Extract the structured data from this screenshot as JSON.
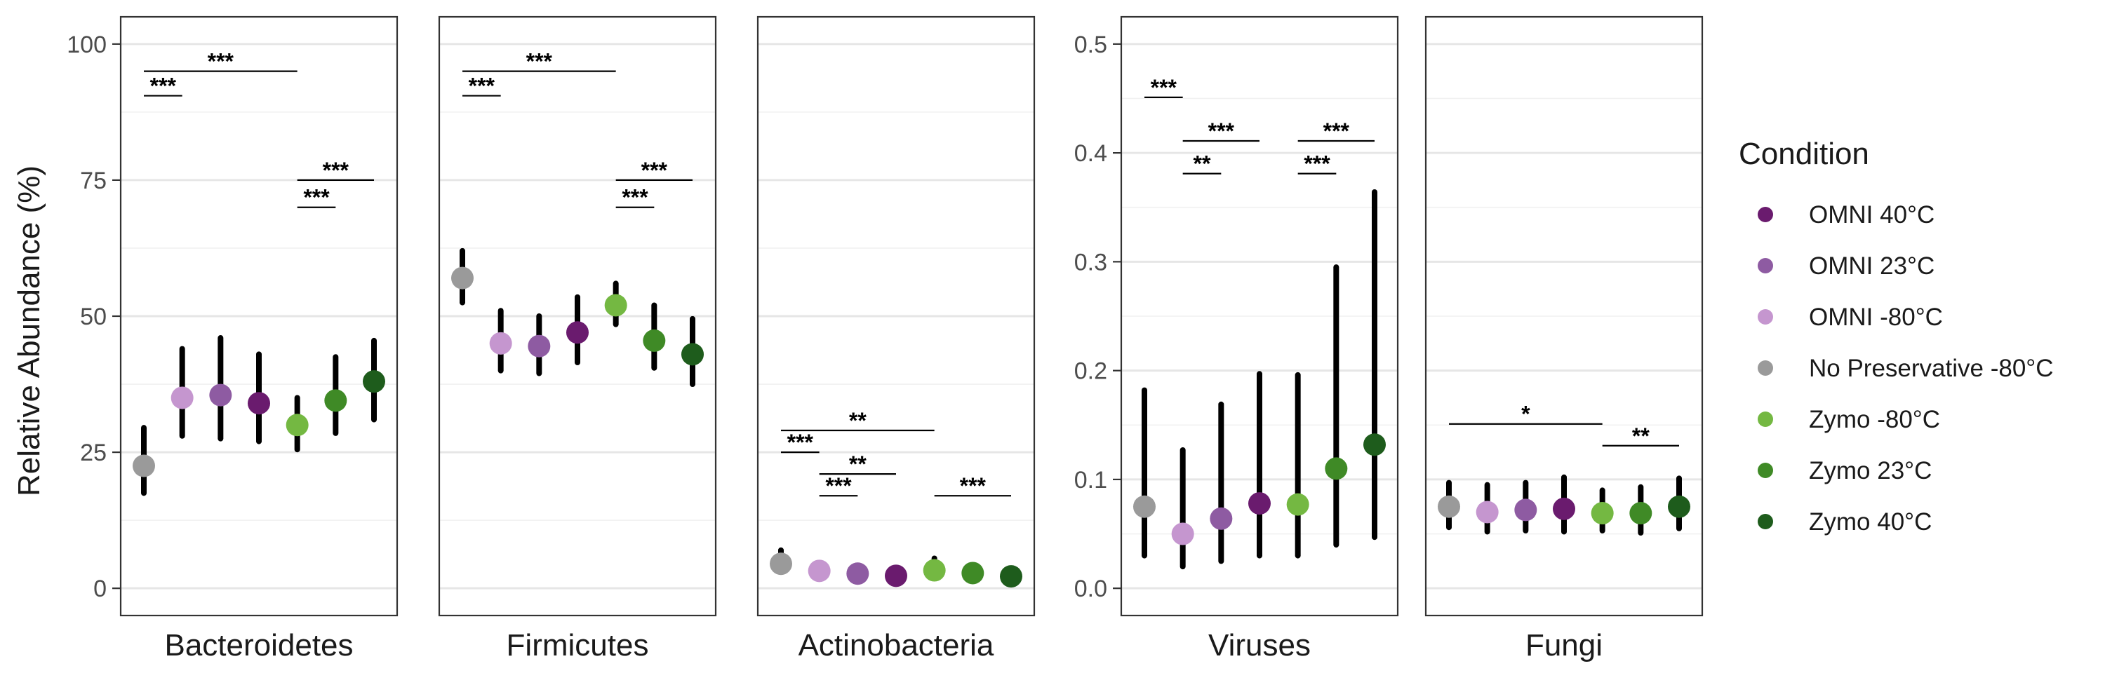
{
  "chart_data": {
    "type": "scatter",
    "ylabel": "Relative Abundance (%)",
    "legend": {
      "title": "Condition",
      "placement": "right",
      "entries": [
        {
          "name": "OMNI 40°C",
          "color": "#6a1b6e"
        },
        {
          "name": "OMNI 23°C",
          "color": "#8e5ba2"
        },
        {
          "name": "OMNI -80°C",
          "color": "#c596cf"
        },
        {
          "name": "No Preservative -80°C",
          "color": "#9a9a9a"
        },
        {
          "name": "Zymo -80°C",
          "color": "#74b842"
        },
        {
          "name": "Zymo 23°C",
          "color": "#3f8a26"
        },
        {
          "name": "Zymo 40°C",
          "color": "#1e5c1c"
        }
      ]
    },
    "x_order": [
      "No Preservative -80°C",
      "OMNI -80°C",
      "OMNI 23°C",
      "OMNI 40°C",
      "Zymo -80°C",
      "Zymo 23°C",
      "Zymo 40°C"
    ],
    "grid": true,
    "panels": [
      {
        "title": "Bacteroidetes",
        "ylim": [
          -5,
          105
        ],
        "yticks": [
          0,
          25,
          50,
          75,
          100
        ],
        "ytick_labels": [
          "0",
          "25",
          "50",
          "75",
          "100"
        ],
        "points": [
          {
            "y": 22.5,
            "lo": 17.5,
            "hi": 29.5
          },
          {
            "y": 35,
            "lo": 28,
            "hi": 44
          },
          {
            "y": 35.5,
            "lo": 27.5,
            "hi": 46
          },
          {
            "y": 34,
            "lo": 27,
            "hi": 43
          },
          {
            "y": 30,
            "lo": 25.5,
            "hi": 35
          },
          {
            "y": 34.5,
            "lo": 28.5,
            "hi": 42.5
          },
          {
            "y": 38,
            "lo": 31,
            "hi": 45.5
          }
        ],
        "brackets": [
          {
            "from": 1,
            "to": 5,
            "y": 95,
            "label": "***"
          },
          {
            "from": 1,
            "to": 2,
            "y": 90.5,
            "label": "***"
          },
          {
            "from": 5,
            "to": 7,
            "y": 75,
            "label": "***"
          },
          {
            "from": 5,
            "to": 6,
            "y": 70,
            "label": "***"
          }
        ]
      },
      {
        "title": "Firmicutes",
        "ylim": [
          -5,
          105
        ],
        "points": [
          {
            "y": 57,
            "lo": 52.5,
            "hi": 62
          },
          {
            "y": 45,
            "lo": 40,
            "hi": 51
          },
          {
            "y": 44.5,
            "lo": 39.5,
            "hi": 50
          },
          {
            "y": 47,
            "lo": 41.5,
            "hi": 53.5
          },
          {
            "y": 52,
            "lo": 48.5,
            "hi": 56
          },
          {
            "y": 45.5,
            "lo": 40.5,
            "hi": 52
          },
          {
            "y": 43,
            "lo": 37.5,
            "hi": 49.5
          }
        ],
        "brackets": [
          {
            "from": 1,
            "to": 5,
            "y": 95,
            "label": "***"
          },
          {
            "from": 1,
            "to": 2,
            "y": 90.5,
            "label": "***"
          },
          {
            "from": 5,
            "to": 7,
            "y": 75,
            "label": "***"
          },
          {
            "from": 5,
            "to": 6,
            "y": 70,
            "label": "***"
          }
        ]
      },
      {
        "title": "Actinobacteria",
        "ylim": [
          -5,
          105
        ],
        "points": [
          {
            "y": 4.5,
            "lo": 3,
            "hi": 7
          },
          {
            "y": 3.2,
            "lo": 2,
            "hi": 4.5
          },
          {
            "y": 2.7,
            "lo": 1.8,
            "hi": 3.8
          },
          {
            "y": 2.3,
            "lo": 1.5,
            "hi": 3.2
          },
          {
            "y": 3.3,
            "lo": 2.3,
            "hi": 5.5
          },
          {
            "y": 2.8,
            "lo": 1.8,
            "hi": 4
          },
          {
            "y": 2.2,
            "lo": 1.4,
            "hi": 3.2
          }
        ],
        "brackets": [
          {
            "from": 1,
            "to": 5,
            "y": 29,
            "label": "**"
          },
          {
            "from": 1,
            "to": 2,
            "y": 25,
            "label": "***"
          },
          {
            "from": 2,
            "to": 4,
            "y": 21,
            "label": "**"
          },
          {
            "from": 2,
            "to": 3,
            "y": 17,
            "label": "***"
          },
          {
            "from": 5,
            "to": 7,
            "y": 17,
            "label": "***"
          }
        ]
      },
      {
        "title": "Viruses",
        "ylim": [
          -0.025,
          0.525
        ],
        "yticks": [
          0,
          0.1,
          0.2,
          0.3,
          0.4,
          0.5
        ],
        "ytick_labels": [
          "0.0",
          "0.1",
          "0.2",
          "0.3",
          "0.4",
          "0.5"
        ],
        "points": [
          {
            "y": 0.075,
            "lo": 0.03,
            "hi": 0.182
          },
          {
            "y": 0.05,
            "lo": 0.02,
            "hi": 0.127
          },
          {
            "y": 0.064,
            "lo": 0.025,
            "hi": 0.169
          },
          {
            "y": 0.078,
            "lo": 0.03,
            "hi": 0.197
          },
          {
            "y": 0.077,
            "lo": 0.03,
            "hi": 0.196
          },
          {
            "y": 0.11,
            "lo": 0.04,
            "hi": 0.295
          },
          {
            "y": 0.132,
            "lo": 0.047,
            "hi": 0.364
          }
        ],
        "brackets": [
          {
            "from": 1,
            "to": 2,
            "y": 0.451,
            "label": "***"
          },
          {
            "from": 2,
            "to": 4,
            "y": 0.411,
            "label": "***"
          },
          {
            "from": 2,
            "to": 3,
            "y": 0.381,
            "label": "**"
          },
          {
            "from": 5,
            "to": 7,
            "y": 0.411,
            "label": "***"
          },
          {
            "from": 5,
            "to": 6,
            "y": 0.381,
            "label": "***"
          }
        ]
      },
      {
        "title": "Fungi",
        "ylim": [
          -0.025,
          0.525
        ],
        "points": [
          {
            "y": 0.075,
            "lo": 0.056,
            "hi": 0.097
          },
          {
            "y": 0.07,
            "lo": 0.052,
            "hi": 0.095
          },
          {
            "y": 0.072,
            "lo": 0.053,
            "hi": 0.097
          },
          {
            "y": 0.073,
            "lo": 0.052,
            "hi": 0.102
          },
          {
            "y": 0.069,
            "lo": 0.053,
            "hi": 0.09
          },
          {
            "y": 0.069,
            "lo": 0.051,
            "hi": 0.093
          },
          {
            "y": 0.075,
            "lo": 0.055,
            "hi": 0.101
          }
        ],
        "brackets": [
          {
            "from": 1,
            "to": 5,
            "y": 0.151,
            "label": "*"
          },
          {
            "from": 5,
            "to": 7,
            "y": 0.131,
            "label": "**"
          }
        ]
      }
    ]
  }
}
